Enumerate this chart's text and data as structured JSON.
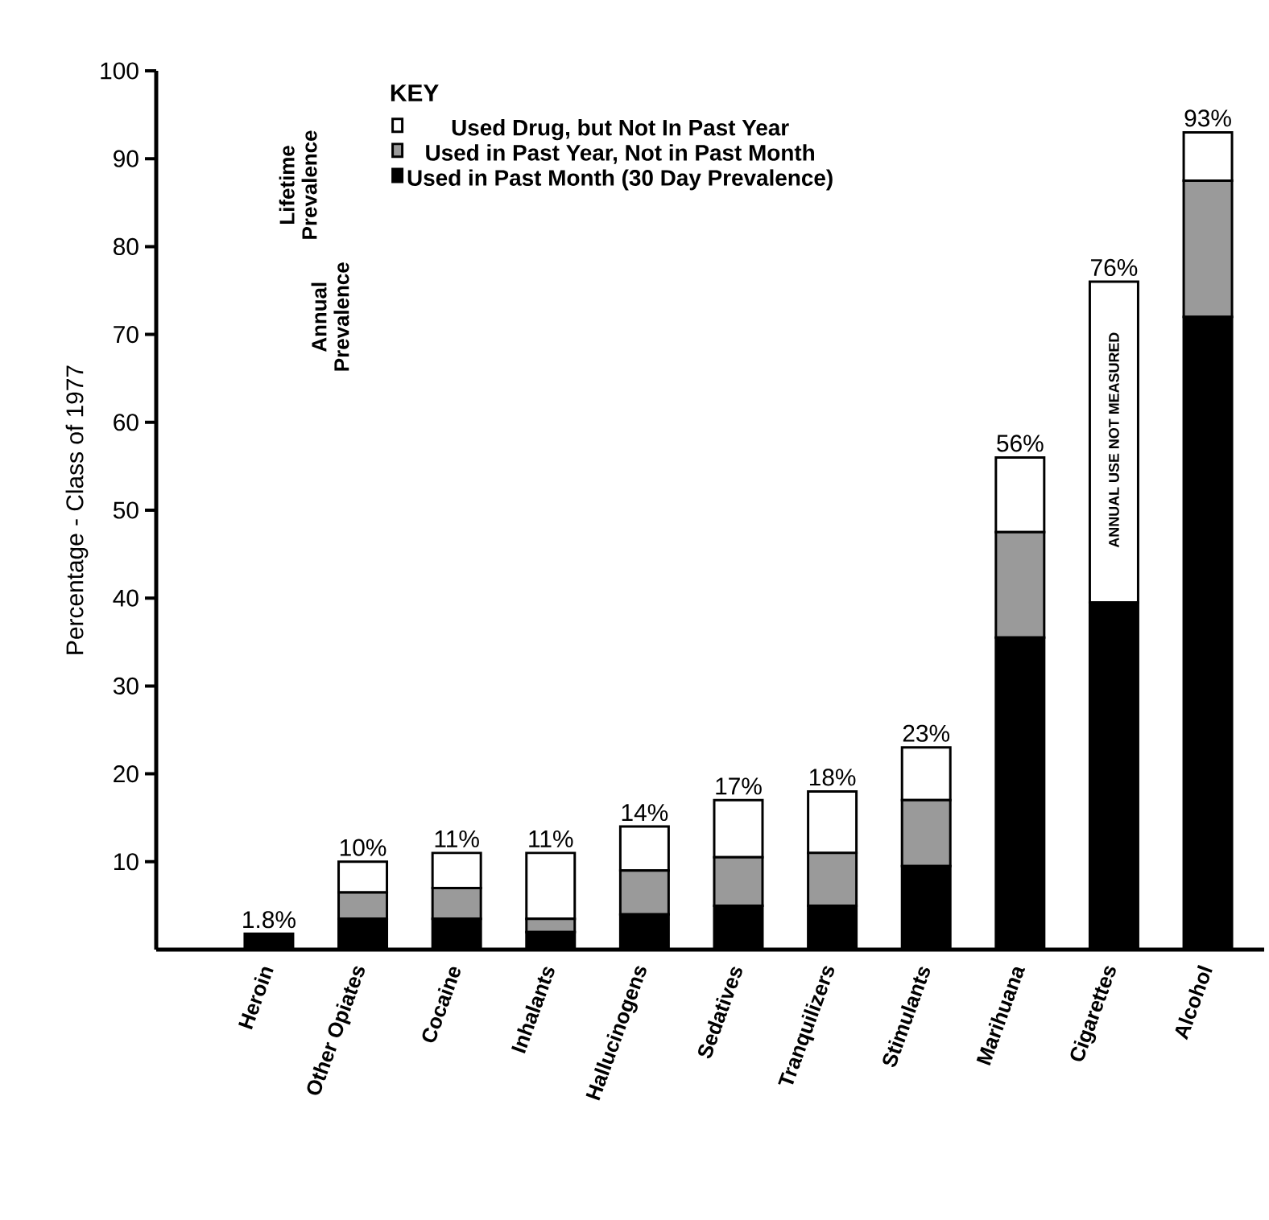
{
  "chart_data": {
    "type": "bar",
    "stacked": true,
    "ylabel": "Percentage - Class of 1977",
    "legend_title": "KEY",
    "legend": "top left",
    "categories": [
      "Heroin",
      "Other Opiates",
      "Cocaine",
      "Inhalants",
      "Hallucinogens",
      "Sedatives",
      "Tranquilizers",
      "Stimulants",
      "Marihuana",
      "Cigarettes",
      "Alcohol"
    ],
    "series": [
      {
        "name": "Used in Past Month (30 Day Prevalence)",
        "color": "#000000",
        "values": [
          1.8,
          3.5,
          3.5,
          2,
          4,
          5,
          5,
          9.5,
          35.5,
          39.5,
          72
        ]
      },
      {
        "name": "Used in Past Year, Not in Past Month",
        "color": "#9a9a9a",
        "values": [
          0,
          3,
          3.5,
          1.5,
          5,
          5.5,
          6,
          7.5,
          12,
          0,
          15.5
        ]
      },
      {
        "name": "Used Drug, but Not In Past Year",
        "color": "#ffffff",
        "values": [
          0,
          3.5,
          4,
          7.5,
          5,
          6.5,
          7,
          6,
          8.5,
          36.5,
          5.5
        ]
      }
    ],
    "totals": [
      "1.8%",
      "10%",
      "11%",
      "11%",
      "14%",
      "17%",
      "18%",
      "23%",
      "56%",
      "76%",
      "93%"
    ],
    "ylim": [
      0,
      100
    ],
    "yticks": [
      10,
      20,
      30,
      40,
      50,
      60,
      70,
      80,
      90,
      100
    ],
    "annotations": [
      {
        "text": "ANNUAL USE NOT MEASURED",
        "x": "Cigarettes",
        "y": 58
      },
      "Lifetime Prevalence",
      "Annual Prevalence"
    ]
  }
}
